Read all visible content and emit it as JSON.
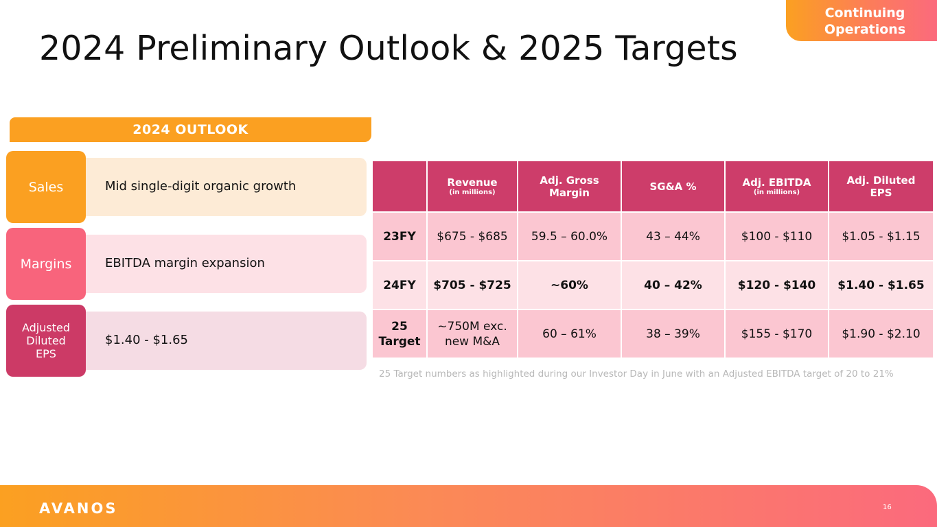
{
  "badge": {
    "line1": "Continuing",
    "line2": "Operations"
  },
  "title": "2024 Preliminary Outlook & 2025 Targets",
  "outlook": {
    "header": "2024 OUTLOOK",
    "rows": [
      {
        "label": "Sales",
        "text": "Mid single-digit organic growth",
        "label_color": "#fba021",
        "box_color": "#fdebd6"
      },
      {
        "label": "Margins",
        "text": "EBITDA margin expansion",
        "label_color": "#f8647c",
        "box_color": "#fde1e6"
      },
      {
        "label_lines": [
          "Adjusted",
          "Diluted",
          "EPS"
        ],
        "text": "$1.40 - $1.65",
        "label_color": "#cc3a66",
        "box_color": "#f5dce4"
      }
    ]
  },
  "table": {
    "columns": [
      {
        "title": "",
        "sub": ""
      },
      {
        "title": "Revenue",
        "sub": "(in millions)"
      },
      {
        "title_lines": [
          "Adj. Gross",
          "Margin"
        ],
        "sub": ""
      },
      {
        "title": "SG&A %",
        "sub": ""
      },
      {
        "title": "Adj. EBITDA",
        "sub": "(in millions)"
      },
      {
        "title_lines": [
          "Adj. Diluted",
          "EPS"
        ],
        "sub": ""
      }
    ],
    "rows": [
      {
        "head": "23FY",
        "cells": [
          "$675 - $685",
          "59.5 – 60.0%",
          "43 – 44%",
          "$100 - $110",
          "$1.05 - $1.15"
        ]
      },
      {
        "head": "24FY",
        "cells": [
          "$705 - $725",
          "~60%",
          "40 – 42%",
          "$120 - $140",
          "$1.40 - $1.65"
        ]
      },
      {
        "head_lines": [
          "25",
          "Target"
        ],
        "cells_first_lines": [
          "~750M exc.",
          "new M&A"
        ],
        "cells": [
          "60 – 61%",
          "38 – 39%",
          "$155 - $170",
          "$1.90 - $2.10"
        ]
      }
    ]
  },
  "footnote": "25 Target numbers as highlighted during our Investor Day in June with an Adjusted EBITDA target of 20 to 21%",
  "footer": {
    "logo_text": "AVANOS",
    "page_number": "16"
  }
}
